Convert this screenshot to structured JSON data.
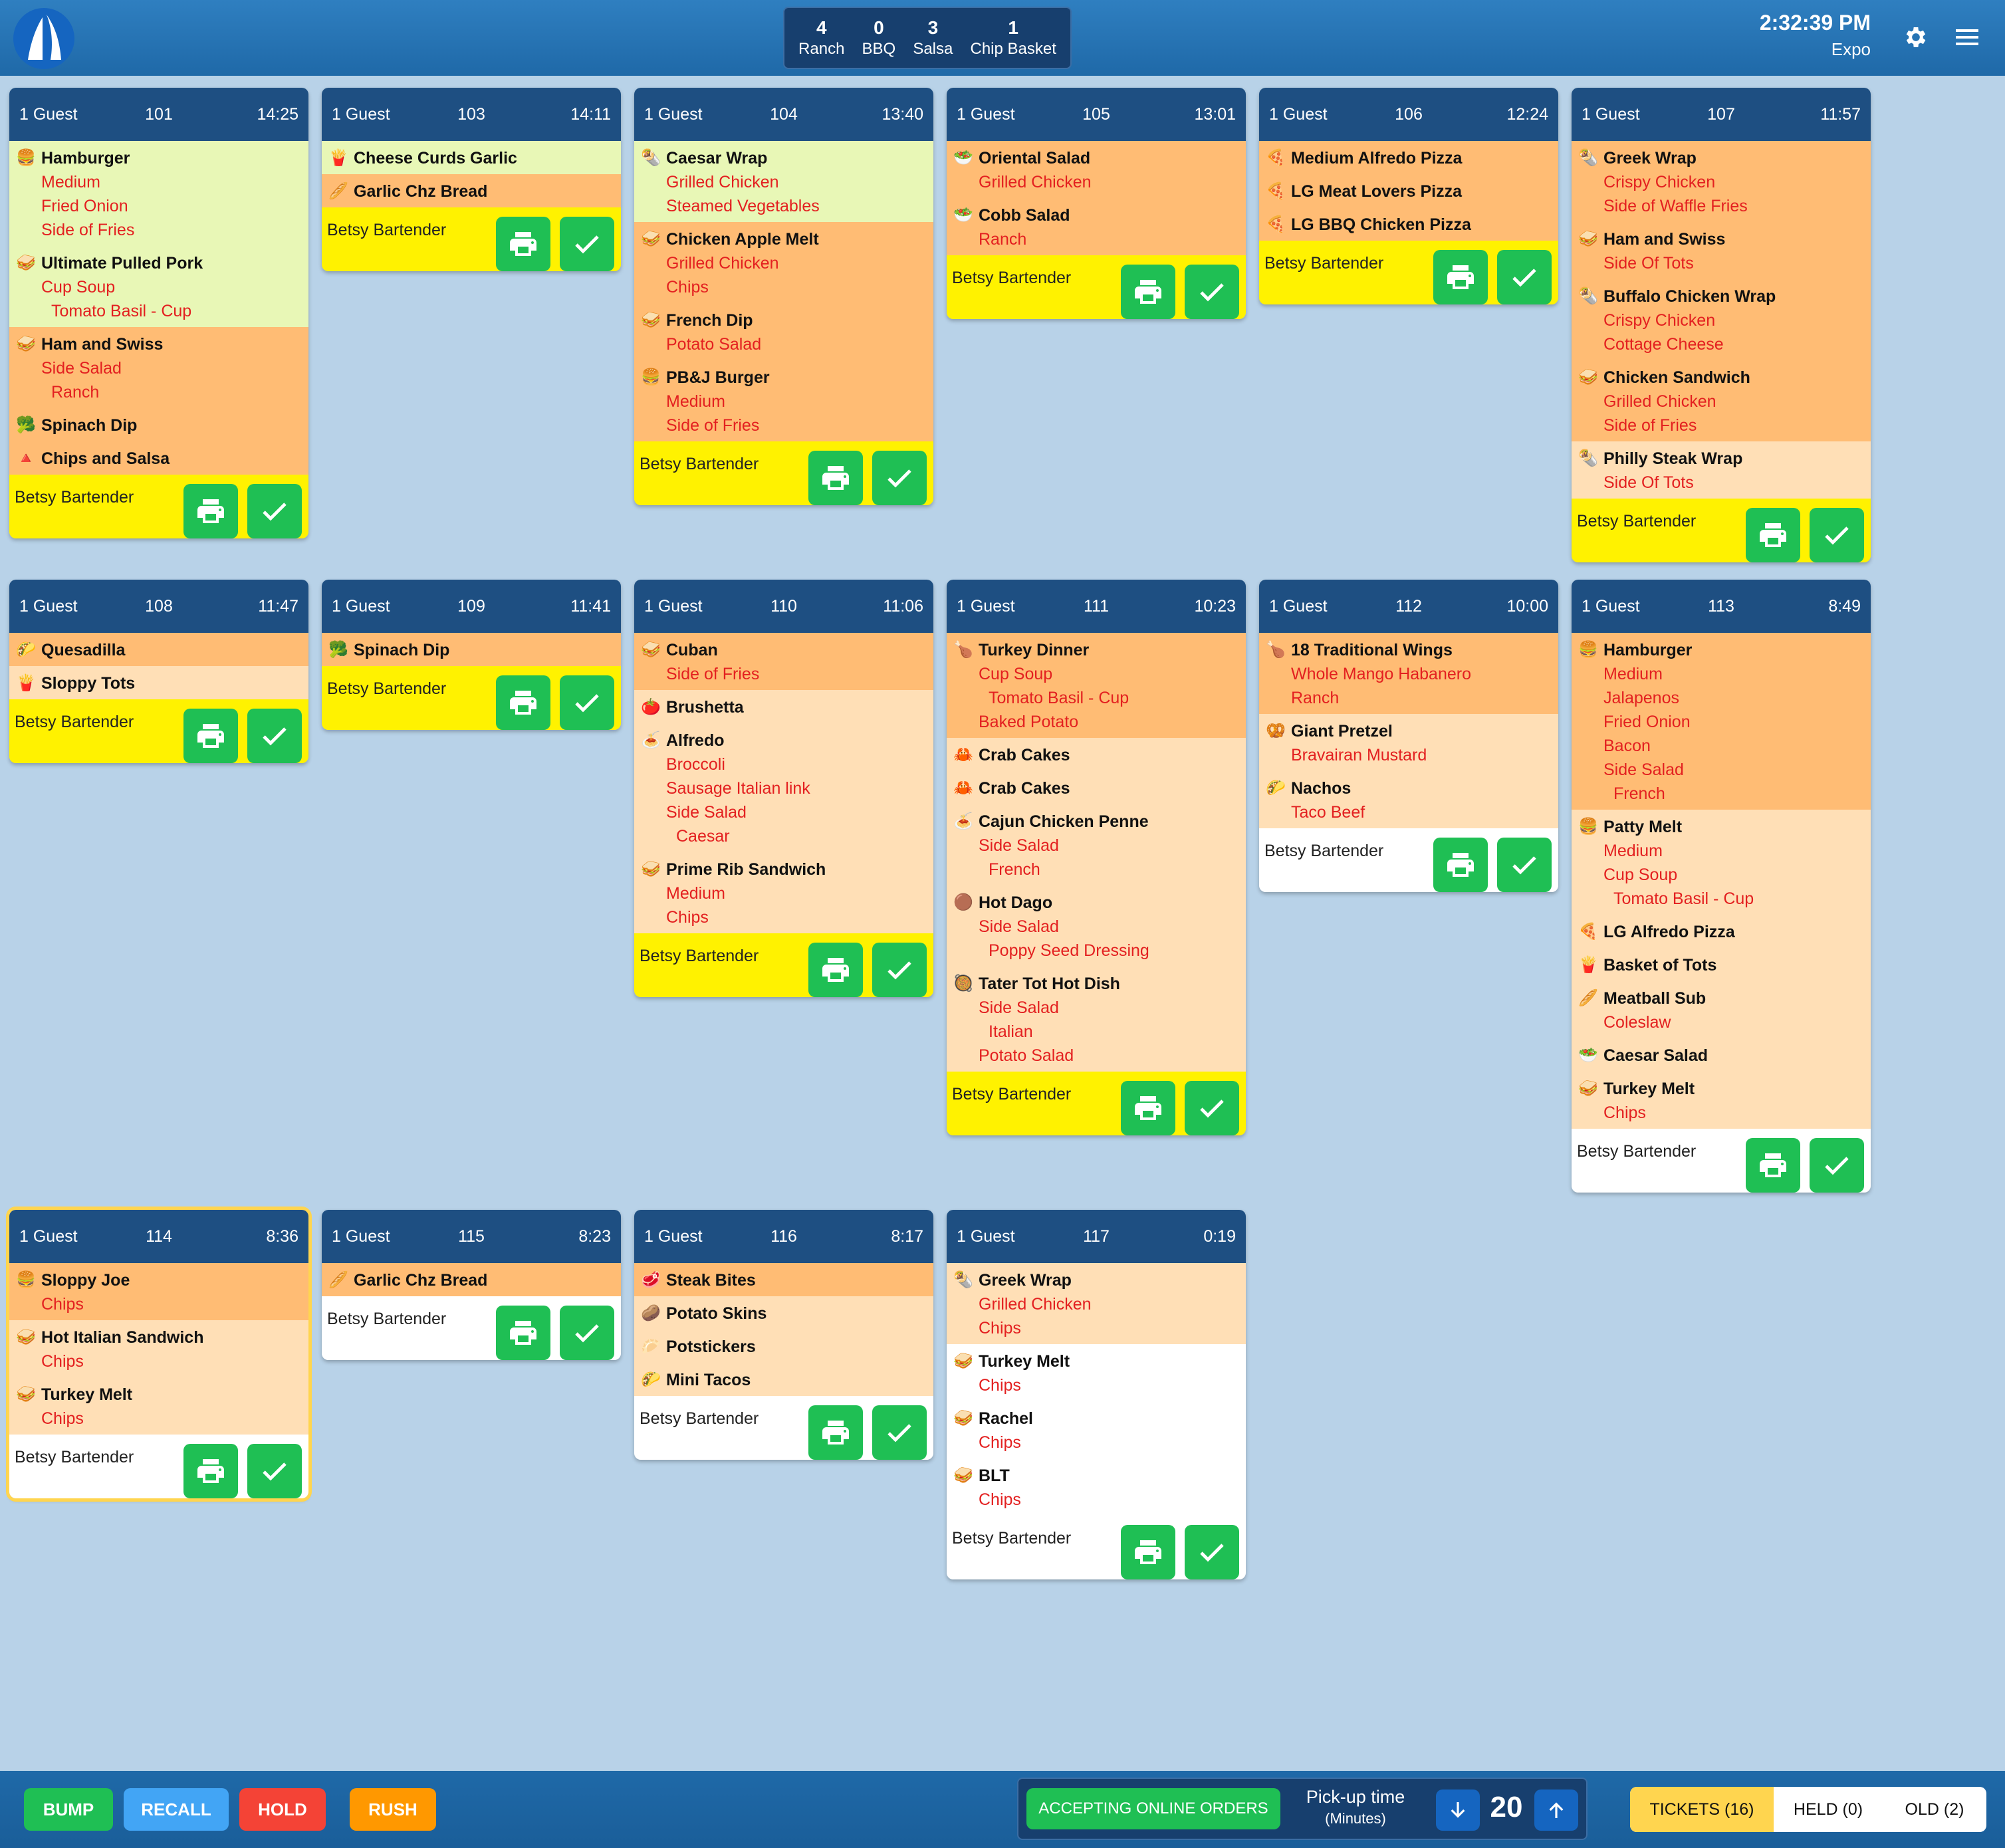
{
  "header": {
    "counts": [
      {
        "count": "4",
        "label": "Ranch"
      },
      {
        "count": "0",
        "label": "BBQ"
      },
      {
        "count": "3",
        "label": "Salsa"
      },
      {
        "count": "1",
        "label": "Chip Basket"
      }
    ],
    "time": "2:32:39 PM",
    "station": "Expo",
    "icons": [
      "sailboat-logo",
      "gear-icon",
      "hamburger-menu-icon"
    ]
  },
  "tickets": [
    {
      "guests": "1 Guest",
      "table": "101",
      "elapsed": "14:25",
      "server": "Betsy Bartender",
      "highlight": "yellow",
      "groups": [
        {
          "color": "green",
          "items": [
            {
              "icon": "🍔",
              "name": "Hamburger",
              "mods": [
                {
                  "t": "Medium"
                },
                {
                  "t": "Fried Onion"
                },
                {
                  "t": "Side of Fries"
                }
              ]
            },
            {
              "icon": "🥪",
              "name": "Ultimate Pulled Pork",
              "mods": [
                {
                  "t": "Cup Soup"
                },
                {
                  "t": "Tomato Basil - Cup",
                  "s": 1
                }
              ]
            }
          ]
        },
        {
          "color": "orange",
          "items": [
            {
              "icon": "🥪",
              "name": "Ham and Swiss",
              "mods": [
                {
                  "t": "Side Salad"
                },
                {
                  "t": "Ranch",
                  "s": 1
                }
              ]
            },
            {
              "icon": "🥦",
              "name": "Spinach Dip",
              "mods": []
            },
            {
              "icon": "🔺",
              "name": "Chips and Salsa",
              "mods": []
            }
          ]
        }
      ]
    },
    {
      "guests": "1 Guest",
      "table": "103",
      "elapsed": "14:11",
      "server": "Betsy Bartender",
      "highlight": "yellow",
      "groups": [
        {
          "color": "green",
          "items": [
            {
              "icon": "🍟",
              "name": "Cheese Curds Garlic",
              "mods": []
            }
          ]
        },
        {
          "color": "orange",
          "items": [
            {
              "icon": "🥖",
              "name": "Garlic Chz Bread",
              "mods": []
            }
          ]
        }
      ]
    },
    {
      "guests": "1 Guest",
      "table": "104",
      "elapsed": "13:40",
      "server": "Betsy Bartender",
      "highlight": "yellow",
      "groups": [
        {
          "color": "green",
          "items": [
            {
              "icon": "🌯",
              "name": "Caesar Wrap",
              "mods": [
                {
                  "t": "Grilled Chicken"
                },
                {
                  "t": "Steamed Vegetables"
                }
              ]
            }
          ]
        },
        {
          "color": "orange",
          "items": [
            {
              "icon": "🥪",
              "name": "Chicken Apple Melt",
              "mods": [
                {
                  "t": "Grilled Chicken"
                },
                {
                  "t": "Chips"
                }
              ]
            },
            {
              "icon": "🥪",
              "name": "French Dip",
              "mods": [
                {
                  "t": "Potato Salad"
                }
              ]
            },
            {
              "icon": "🍔",
              "name": "PB&J Burger",
              "mods": [
                {
                  "t": "Medium"
                },
                {
                  "t": "Side of Fries"
                }
              ]
            }
          ]
        }
      ]
    },
    {
      "guests": "1 Guest",
      "table": "105",
      "elapsed": "13:01",
      "server": "Betsy Bartender",
      "highlight": "yellow",
      "groups": [
        {
          "color": "orange",
          "items": [
            {
              "icon": "🥗",
              "name": "Oriental Salad",
              "mods": [
                {
                  "t": "Grilled Chicken"
                }
              ]
            },
            {
              "icon": "🥗",
              "name": "Cobb Salad",
              "mods": [
                {
                  "t": "Ranch"
                }
              ]
            }
          ]
        }
      ]
    },
    {
      "guests": "1 Guest",
      "table": "106",
      "elapsed": "12:24",
      "server": "Betsy Bartender",
      "highlight": "yellow",
      "groups": [
        {
          "color": "orange",
          "items": [
            {
              "icon": "🍕",
              "name": "Medium Alfredo Pizza",
              "mods": []
            },
            {
              "icon": "🍕",
              "name": "LG Meat Lovers Pizza",
              "mods": []
            },
            {
              "icon": "🍕",
              "name": "LG BBQ Chicken Pizza",
              "mods": []
            }
          ]
        }
      ]
    },
    {
      "guests": "1 Guest",
      "table": "107",
      "elapsed": "11:57",
      "server": "Betsy Bartender",
      "highlight": "yellow",
      "groups": [
        {
          "color": "orange",
          "items": [
            {
              "icon": "🌯",
              "name": "Greek Wrap",
              "mods": [
                {
                  "t": "Crispy Chicken"
                },
                {
                  "t": "Side of Waffle Fries"
                }
              ]
            },
            {
              "icon": "🥪",
              "name": "Ham and Swiss",
              "mods": [
                {
                  "t": "Side Of Tots"
                }
              ]
            },
            {
              "icon": "🌯",
              "name": "Buffalo Chicken Wrap",
              "mods": [
                {
                  "t": "Crispy Chicken"
                },
                {
                  "t": "Cottage Cheese"
                }
              ]
            },
            {
              "icon": "🥪",
              "name": "Chicken Sandwich",
              "mods": [
                {
                  "t": "Grilled Chicken"
                },
                {
                  "t": "Side of Fries"
                }
              ]
            }
          ]
        },
        {
          "color": "peach",
          "items": [
            {
              "icon": "🌯",
              "name": "Philly Steak Wrap",
              "mods": [
                {
                  "t": "Side Of Tots"
                }
              ]
            }
          ]
        }
      ]
    },
    {
      "guests": "1 Guest",
      "table": "108",
      "elapsed": "11:47",
      "server": "Betsy Bartender",
      "highlight": "yellow",
      "groups": [
        {
          "color": "orange",
          "items": [
            {
              "icon": "🌮",
              "name": "Quesadilla",
              "mods": []
            }
          ]
        },
        {
          "color": "peach",
          "items": [
            {
              "icon": "🍟",
              "name": "Sloppy Tots",
              "mods": []
            }
          ]
        }
      ]
    },
    {
      "guests": "1 Guest",
      "table": "109",
      "elapsed": "11:41",
      "server": "Betsy Bartender",
      "highlight": "yellow",
      "groups": [
        {
          "color": "orange",
          "items": [
            {
              "icon": "🥦",
              "name": "Spinach Dip",
              "mods": []
            }
          ]
        }
      ]
    },
    {
      "guests": "1 Guest",
      "table": "110",
      "elapsed": "11:06",
      "server": "Betsy Bartender",
      "highlight": "yellow",
      "groups": [
        {
          "color": "orange",
          "items": [
            {
              "icon": "🥪",
              "name": "Cuban",
              "mods": [
                {
                  "t": "Side of Fries"
                }
              ]
            }
          ]
        },
        {
          "color": "peach",
          "items": [
            {
              "icon": "🍅",
              "name": "Brushetta",
              "mods": []
            },
            {
              "icon": "🍝",
              "name": "Alfredo",
              "mods": [
                {
                  "t": "Broccoli"
                },
                {
                  "t": "Sausage Italian link"
                },
                {
                  "t": "Side Salad"
                },
                {
                  "t": "Caesar",
                  "s": 1
                }
              ]
            },
            {
              "icon": "🥪",
              "name": "Prime Rib Sandwich",
              "mods": [
                {
                  "t": "Medium"
                },
                {
                  "t": "Chips"
                }
              ]
            }
          ]
        }
      ]
    },
    {
      "guests": "1 Guest",
      "table": "111",
      "elapsed": "10:23",
      "server": "Betsy Bartender",
      "highlight": "yellow",
      "groups": [
        {
          "color": "orange",
          "items": [
            {
              "icon": "🍗",
              "name": "Turkey Dinner",
              "mods": [
                {
                  "t": "Cup Soup"
                },
                {
                  "t": "Tomato Basil - Cup",
                  "s": 1
                },
                {
                  "t": "Baked Potato"
                }
              ]
            }
          ]
        },
        {
          "color": "peach",
          "items": [
            {
              "icon": "🦀",
              "name": "Crab Cakes",
              "mods": []
            },
            {
              "icon": "🦀",
              "name": "Crab Cakes",
              "mods": []
            },
            {
              "icon": "🍝",
              "name": "Cajun Chicken Penne",
              "mods": [
                {
                  "t": "Side Salad"
                },
                {
                  "t": "French",
                  "s": 1
                }
              ]
            },
            {
              "icon": "🟤",
              "name": "Hot Dago",
              "mods": [
                {
                  "t": "Side Salad"
                },
                {
                  "t": "Poppy Seed Dressing",
                  "s": 1
                }
              ]
            },
            {
              "icon": "🥘",
              "name": "Tater Tot Hot Dish",
              "mods": [
                {
                  "t": "Side Salad"
                },
                {
                  "t": "Italian",
                  "s": 1
                },
                {
                  "t": "Potato Salad"
                }
              ]
            }
          ]
        }
      ]
    },
    {
      "guests": "1 Guest",
      "table": "112",
      "elapsed": "10:00",
      "server": "Betsy Bartender",
      "highlight": "white",
      "groups": [
        {
          "color": "orange",
          "items": [
            {
              "icon": "🍗",
              "name": "18 Traditional Wings",
              "mods": [
                {
                  "t": "Whole Mango Habanero"
                },
                {
                  "t": "Ranch"
                }
              ]
            }
          ]
        },
        {
          "color": "peach",
          "items": [
            {
              "icon": "🥨",
              "name": "Giant Pretzel",
              "mods": [
                {
                  "t": "Bravairan Mustard"
                }
              ]
            },
            {
              "icon": "🌮",
              "name": "Nachos",
              "mods": [
                {
                  "t": "Taco Beef"
                }
              ]
            }
          ]
        }
      ]
    },
    {
      "guests": "1 Guest",
      "table": "113",
      "elapsed": "8:49",
      "server": "Betsy Bartender",
      "highlight": "white",
      "groups": [
        {
          "color": "orange",
          "items": [
            {
              "icon": "🍔",
              "name": "Hamburger",
              "mods": [
                {
                  "t": "Medium"
                },
                {
                  "t": "Jalapenos"
                },
                {
                  "t": "Fried Onion"
                },
                {
                  "t": "Bacon"
                },
                {
                  "t": "Side Salad"
                },
                {
                  "t": "French",
                  "s": 1
                }
              ]
            }
          ]
        },
        {
          "color": "peach",
          "items": [
            {
              "icon": "🍔",
              "name": "Patty Melt",
              "mods": [
                {
                  "t": "Medium"
                },
                {
                  "t": "Cup Soup"
                },
                {
                  "t": "Tomato Basil - Cup",
                  "s": 1
                }
              ]
            },
            {
              "icon": "🍕",
              "name": "LG Alfredo Pizza",
              "mods": []
            },
            {
              "icon": "🍟",
              "name": "Basket of Tots",
              "mods": []
            },
            {
              "icon": "🥖",
              "name": "Meatball Sub",
              "mods": [
                {
                  "t": "Coleslaw"
                }
              ]
            },
            {
              "icon": "🥗",
              "name": "Caesar Salad",
              "mods": []
            },
            {
              "icon": "🥪",
              "name": "Turkey Melt",
              "mods": [
                {
                  "t": "Chips"
                }
              ]
            }
          ]
        }
      ]
    },
    {
      "guests": "1 Guest",
      "table": "114",
      "elapsed": "8:36",
      "server": "Betsy Bartender",
      "highlight": "white",
      "selected": true,
      "groups": [
        {
          "color": "orange",
          "items": [
            {
              "icon": "🍔",
              "name": "Sloppy Joe",
              "mods": [
                {
                  "t": "Chips"
                }
              ]
            }
          ]
        },
        {
          "color": "peach",
          "items": [
            {
              "icon": "🥪",
              "name": "Hot Italian Sandwich",
              "mods": [
                {
                  "t": "Chips"
                }
              ]
            },
            {
              "icon": "🥪",
              "name": "Turkey Melt",
              "mods": [
                {
                  "t": "Chips"
                }
              ]
            }
          ]
        }
      ]
    },
    {
      "guests": "1 Guest",
      "table": "115",
      "elapsed": "8:23",
      "server": "Betsy Bartender",
      "highlight": "white",
      "groups": [
        {
          "color": "orange",
          "items": [
            {
              "icon": "🥖",
              "name": "Garlic Chz Bread",
              "mods": []
            }
          ]
        }
      ]
    },
    {
      "guests": "1 Guest",
      "table": "116",
      "elapsed": "8:17",
      "server": "Betsy Bartender",
      "highlight": "white",
      "groups": [
        {
          "color": "orange",
          "items": [
            {
              "icon": "🥩",
              "name": "Steak Bites",
              "mods": []
            }
          ]
        },
        {
          "color": "peach",
          "items": [
            {
              "icon": "🥔",
              "name": "Potato Skins",
              "mods": []
            },
            {
              "icon": "🥟",
              "name": "Potstickers",
              "mods": []
            },
            {
              "icon": "🌮",
              "name": "Mini Tacos",
              "mods": []
            }
          ]
        }
      ]
    },
    {
      "guests": "1 Guest",
      "table": "117",
      "elapsed": "0:19",
      "server": "Betsy Bartender",
      "highlight": "white",
      "groups": [
        {
          "color": "peach",
          "items": [
            {
              "icon": "🌯",
              "name": "Greek Wrap",
              "mods": [
                {
                  "t": "Grilled Chicken"
                },
                {
                  "t": "Chips"
                }
              ]
            }
          ]
        },
        {
          "color": "white",
          "items": [
            {
              "icon": "🥪",
              "name": "Turkey Melt",
              "mods": [
                {
                  "t": "Chips"
                }
              ]
            },
            {
              "icon": "🥪",
              "name": "Rachel",
              "mods": [
                {
                  "t": "Chips"
                }
              ]
            },
            {
              "icon": "🥪",
              "name": "BLT",
              "mods": [
                {
                  "t": "Chips"
                }
              ]
            }
          ]
        }
      ]
    }
  ],
  "footer": {
    "buttons": [
      {
        "label": "BUMP",
        "color": "#1fbf54"
      },
      {
        "label": "RECALL",
        "color": "#42a5f5"
      },
      {
        "label": "HOLD",
        "color": "#f44336"
      },
      {
        "label": "RUSH",
        "color": "#ff9800"
      }
    ],
    "online_orders": "ACCEPTING ONLINE ORDERS",
    "pickup_label": "Pick-up time",
    "pickup_unit": "(Minutes)",
    "pickup_value": "20",
    "tabs": [
      {
        "label": "TICKETS (16)",
        "active": true
      },
      {
        "label": "HELD (0)",
        "active": false
      },
      {
        "label": "OLD (2)",
        "active": false
      }
    ]
  },
  "colors": {
    "header": "#1e4f82",
    "green_group": "#e8f7b6",
    "orange_group": "#ffbc74",
    "peach_group": "#ffdfb6",
    "footer_yellow": "#fff200",
    "action_green": "#1fbf54"
  }
}
